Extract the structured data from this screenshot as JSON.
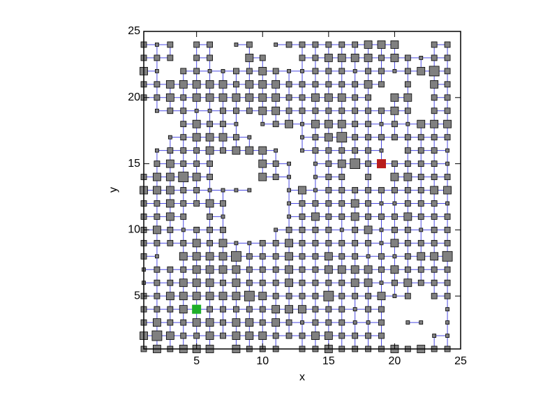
{
  "chart_data": {
    "type": "scatter",
    "x_label": "x",
    "y_label": "y",
    "xlim": [
      1,
      25
    ],
    "ylim": [
      1,
      25
    ],
    "xticks": [
      5,
      10,
      15,
      20,
      25
    ],
    "yticks": [
      5,
      10,
      15,
      20,
      25
    ],
    "node_color": "#808080",
    "edge_color": "#4a4ae0",
    "rows": [
      {
        "y": 24,
        "x": [
          1,
          2,
          3,
          5,
          6,
          8,
          9,
          11,
          12,
          13,
          14,
          15,
          16,
          17,
          18,
          19,
          20,
          23,
          24
        ],
        "size": [
          2,
          1,
          2,
          2,
          2,
          1,
          2,
          1,
          2,
          2,
          2,
          2,
          2,
          2,
          3,
          3,
          3,
          2,
          2
        ]
      },
      {
        "y": 23,
        "x": [
          1,
          2,
          3,
          5,
          6,
          9,
          10,
          13,
          14,
          15,
          16,
          17,
          18,
          19,
          20,
          21,
          22,
          23,
          24
        ],
        "size": [
          2,
          2,
          2,
          2,
          2,
          3,
          2,
          2,
          2,
          3,
          3,
          3,
          3,
          2,
          3,
          2,
          1,
          2,
          2
        ]
      },
      {
        "y": 22,
        "x": [
          1,
          2,
          4,
          5,
          6,
          7,
          8,
          9,
          10,
          11,
          12,
          13,
          14,
          15,
          16,
          17,
          18,
          19,
          20,
          21,
          22,
          23,
          24
        ],
        "size": [
          3,
          1,
          2,
          2,
          1,
          1,
          2,
          2,
          3,
          2,
          1,
          1,
          2,
          2,
          2,
          1,
          2,
          2,
          1,
          2,
          3,
          4,
          2
        ]
      },
      {
        "y": 21,
        "x": [
          1,
          2,
          3,
          4,
          5,
          6,
          7,
          8,
          9,
          10,
          11,
          12,
          13,
          14,
          15,
          16,
          17,
          18,
          19,
          21,
          23,
          24
        ],
        "size": [
          2,
          2,
          3,
          3,
          3,
          3,
          3,
          2,
          3,
          3,
          3,
          2,
          2,
          2,
          2,
          2,
          2,
          3,
          2,
          2,
          3,
          2
        ]
      },
      {
        "y": 20,
        "x": [
          1,
          2,
          3,
          4,
          5,
          6,
          7,
          8,
          9,
          10,
          11,
          12,
          13,
          14,
          15,
          16,
          17,
          18,
          20,
          21,
          23,
          24
        ],
        "size": [
          2,
          2,
          3,
          2,
          3,
          3,
          3,
          3,
          3,
          3,
          3,
          2,
          2,
          3,
          3,
          3,
          2,
          2,
          3,
          3,
          2,
          2
        ]
      },
      {
        "y": 19,
        "x": [
          2,
          3,
          4,
          5,
          6,
          7,
          8,
          9,
          10,
          11,
          12,
          13,
          14,
          15,
          16,
          17,
          18,
          19,
          20,
          21,
          23,
          24
        ],
        "size": [
          1,
          2,
          2,
          1,
          1,
          2,
          2,
          2,
          3,
          3,
          2,
          2,
          2,
          2,
          2,
          2,
          2,
          2,
          3,
          2,
          2,
          2
        ]
      },
      {
        "y": 18,
        "x": [
          4,
          5,
          6,
          7,
          8,
          10,
          11,
          12,
          13,
          14,
          15,
          16,
          17,
          18,
          19,
          20,
          21,
          22,
          23,
          24
        ],
        "size": [
          2,
          3,
          2,
          2,
          1,
          1,
          2,
          3,
          1,
          3,
          3,
          3,
          2,
          2,
          1,
          2,
          1,
          3,
          3,
          3
        ]
      },
      {
        "y": 17,
        "x": [
          3,
          4,
          5,
          6,
          7,
          8,
          9,
          13,
          14,
          15,
          16,
          17,
          18,
          19,
          20,
          21,
          22,
          23,
          24
        ],
        "size": [
          1,
          2,
          3,
          3,
          3,
          2,
          1,
          1,
          2,
          3,
          4,
          2,
          2,
          2,
          2,
          2,
          2,
          2,
          2
        ]
      },
      {
        "y": 16,
        "x": [
          2,
          3,
          4,
          5,
          6,
          7,
          8,
          9,
          10,
          11,
          13,
          14,
          15,
          16,
          17,
          18,
          19,
          21,
          22,
          23,
          24
        ],
        "size": [
          1,
          2,
          2,
          2,
          3,
          2,
          3,
          3,
          3,
          1,
          1,
          2,
          2,
          2,
          2,
          2,
          1,
          2,
          2,
          2,
          1
        ]
      },
      {
        "y": 15,
        "x": [
          2,
          3,
          4,
          5,
          6,
          10,
          11,
          12,
          14,
          15,
          16,
          17,
          18,
          19,
          20,
          21,
          22,
          23,
          24
        ],
        "size": [
          2,
          3,
          2,
          2,
          2,
          3,
          2,
          1,
          1,
          2,
          3,
          4,
          2,
          3,
          2,
          2,
          2,
          2,
          1
        ]
      },
      {
        "y": 14,
        "x": [
          1,
          2,
          3,
          4,
          5,
          6,
          10,
          11,
          12,
          14,
          15,
          16,
          18,
          20,
          21,
          22,
          23,
          24
        ],
        "size": [
          2,
          3,
          3,
          4,
          3,
          2,
          3,
          2,
          1,
          1,
          2,
          2,
          2,
          3,
          3,
          2,
          2,
          2
        ]
      },
      {
        "y": 13,
        "x": [
          1,
          2,
          3,
          4,
          5,
          6,
          7,
          8,
          9,
          12,
          13,
          14,
          15,
          16,
          17,
          18,
          19,
          20,
          21,
          22,
          23,
          24
        ],
        "size": [
          3,
          3,
          3,
          2,
          2,
          1,
          1,
          1,
          1,
          1,
          3,
          1,
          2,
          2,
          2,
          2,
          2,
          2,
          2,
          2,
          3,
          3
        ]
      },
      {
        "y": 12,
        "x": [
          1,
          2,
          3,
          4,
          5,
          6,
          7,
          12,
          13,
          14,
          15,
          16,
          17,
          18,
          19,
          20,
          21,
          22,
          23,
          24
        ],
        "size": [
          2,
          2,
          3,
          2,
          2,
          3,
          2,
          1,
          2,
          2,
          2,
          2,
          3,
          2,
          1,
          1,
          2,
          2,
          2,
          1
        ]
      },
      {
        "y": 11,
        "x": [
          1,
          2,
          3,
          4,
          6,
          7,
          12,
          13,
          14,
          15,
          16,
          17,
          18,
          19,
          20,
          21,
          22,
          23,
          24
        ],
        "size": [
          2,
          2,
          3,
          2,
          2,
          1,
          1,
          2,
          3,
          2,
          2,
          3,
          2,
          2,
          2,
          3,
          2,
          2,
          2
        ]
      },
      {
        "y": 10,
        "x": [
          1,
          2,
          3,
          4,
          5,
          6,
          7,
          11,
          12,
          13,
          14,
          15,
          16,
          17,
          18,
          19,
          20,
          21,
          22,
          23,
          24
        ],
        "size": [
          2,
          3,
          2,
          1,
          2,
          2,
          2,
          1,
          2,
          2,
          2,
          2,
          1,
          2,
          3,
          1,
          2,
          2,
          1,
          2,
          2
        ]
      },
      {
        "y": 9,
        "x": [
          1,
          2,
          3,
          4,
          5,
          6,
          7,
          8,
          9,
          10,
          11,
          12,
          13,
          14,
          15,
          16,
          17,
          18,
          19,
          20,
          21,
          22,
          23,
          24
        ],
        "size": [
          2,
          2,
          2,
          2,
          3,
          2,
          3,
          1,
          1,
          2,
          2,
          3,
          2,
          2,
          2,
          2,
          2,
          2,
          1,
          3,
          2,
          2,
          2,
          2
        ]
      },
      {
        "y": 8,
        "x": [
          1,
          2,
          4,
          5,
          6,
          7,
          8,
          9,
          10,
          11,
          12,
          13,
          14,
          15,
          16,
          17,
          18,
          19,
          20,
          21,
          22,
          23,
          24
        ],
        "size": [
          2,
          1,
          3,
          3,
          3,
          3,
          4,
          2,
          2,
          2,
          3,
          2,
          2,
          3,
          2,
          2,
          1,
          2,
          1,
          2,
          3,
          3,
          4
        ]
      },
      {
        "y": 7,
        "x": [
          1,
          2,
          3,
          4,
          5,
          6,
          7,
          8,
          9,
          10,
          11,
          12,
          13,
          14,
          15,
          16,
          17,
          18,
          19,
          20,
          21,
          22,
          23,
          24
        ],
        "size": [
          1,
          2,
          2,
          2,
          3,
          3,
          3,
          3,
          2,
          2,
          2,
          3,
          2,
          2,
          3,
          3,
          3,
          3,
          2,
          3,
          2,
          2,
          2,
          2
        ]
      },
      {
        "y": 6,
        "x": [
          1,
          2,
          3,
          4,
          5,
          6,
          7,
          8,
          9,
          10,
          11,
          12,
          13,
          14,
          15,
          16,
          17,
          18,
          19,
          20,
          21,
          22,
          23,
          24
        ],
        "size": [
          1,
          2,
          2,
          3,
          3,
          3,
          2,
          3,
          2,
          2,
          2,
          3,
          2,
          2,
          2,
          2,
          3,
          3,
          1,
          2,
          3,
          2,
          2,
          2
        ]
      },
      {
        "y": 5,
        "x": [
          1,
          2,
          3,
          4,
          5,
          6,
          7,
          8,
          9,
          10,
          11,
          12,
          13,
          14,
          15,
          16,
          17,
          18,
          19,
          20,
          21,
          23,
          24
        ],
        "size": [
          2,
          2,
          3,
          3,
          3,
          3,
          3,
          3,
          4,
          3,
          2,
          2,
          2,
          2,
          4,
          2,
          2,
          2,
          3,
          1,
          2,
          2,
          2
        ]
      },
      {
        "y": 4,
        "x": [
          1,
          2,
          3,
          4,
          5,
          6,
          7,
          8,
          9,
          10,
          11,
          12,
          13,
          14,
          15,
          16,
          17,
          18,
          19,
          24
        ],
        "size": [
          2,
          2,
          2,
          3,
          3,
          2,
          2,
          2,
          2,
          2,
          3,
          3,
          3,
          2,
          2,
          2,
          1,
          2,
          2,
          1
        ]
      },
      {
        "y": 3,
        "x": [
          1,
          2,
          3,
          4,
          5,
          6,
          7,
          8,
          9,
          10,
          11,
          12,
          13,
          14,
          15,
          16,
          17,
          18,
          19,
          21,
          22,
          24
        ],
        "size": [
          2,
          3,
          2,
          2,
          3,
          3,
          2,
          3,
          3,
          2,
          3,
          2,
          1,
          2,
          2,
          2,
          1,
          1,
          2,
          1,
          1,
          1
        ]
      },
      {
        "y": 2,
        "x": [
          1,
          2,
          3,
          4,
          5,
          6,
          7,
          8,
          9,
          10,
          11,
          12,
          13,
          14,
          15,
          16,
          17,
          18,
          19,
          23,
          24
        ],
        "size": [
          3,
          4,
          3,
          2,
          2,
          3,
          2,
          3,
          3,
          3,
          2,
          2,
          2,
          3,
          3,
          2,
          2,
          2,
          2,
          1,
          1
        ]
      },
      {
        "y": 1,
        "x": [
          1,
          2,
          3,
          4,
          5,
          6,
          8,
          9,
          10,
          11,
          13,
          14,
          15,
          16,
          17,
          18,
          19,
          20,
          21,
          22,
          23,
          24
        ],
        "size": [
          2,
          3,
          2,
          3,
          3,
          3,
          3,
          2,
          2,
          2,
          2,
          2,
          3,
          2,
          2,
          2,
          2,
          3,
          2,
          3,
          2,
          2
        ]
      }
    ],
    "highlights": [
      {
        "x": 19,
        "y": 15,
        "color": "#b81c1c"
      },
      {
        "x": 5,
        "y": 4,
        "color": "#1fae2a"
      }
    ]
  }
}
